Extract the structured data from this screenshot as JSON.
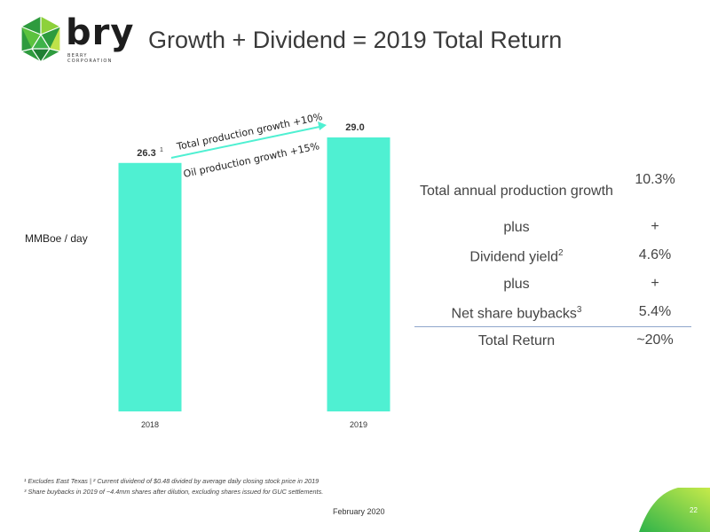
{
  "brand": {
    "name": "bry",
    "subtitle_line1": "BERRY",
    "subtitle_line2": "CORPORATION",
    "colors": {
      "green_dark": "#2e8b3a",
      "green_light": "#8dd13a",
      "accent": "#4ff0d2"
    }
  },
  "slide": {
    "title": "Growth + Dividend = 2019 Total Return",
    "date": "February 2020",
    "page_number": "22"
  },
  "chart_data": {
    "type": "bar",
    "categories": [
      "2018",
      "2019"
    ],
    "values": [
      26.3,
      29.0
    ],
    "value_labels": [
      "26.3",
      "29.0"
    ],
    "value_label_superscripts": [
      "1",
      ""
    ],
    "ylabel": "MMBoe / day",
    "ylim": [
      0,
      29.0
    ],
    "bar_color": "#4ff0d2",
    "annotations": [
      "Total production growth +10%",
      "Oil production growth +15%"
    ]
  },
  "table": {
    "rows": [
      {
        "label": "Total annual production growth",
        "sup": "",
        "value": "10.3%"
      },
      {
        "label": "plus",
        "sup": "",
        "value": "+"
      },
      {
        "label": "Dividend yield",
        "sup": "2",
        "value": "4.6%"
      },
      {
        "label": "plus",
        "sup": "",
        "value": "+"
      },
      {
        "label": "Net share buybacks",
        "sup": "3",
        "value": "5.4%"
      }
    ],
    "total": {
      "label": "Total Return",
      "value": "~20%"
    }
  },
  "footnotes": {
    "line1": "¹ Excludes East Texas | ² Current dividend of $0.48 divided by average daily closing stock price in 2019",
    "line2": "³ Share buybacks in 2019 of ~4.4mm shares after dilution, excluding shares issued for GUC settlements."
  }
}
